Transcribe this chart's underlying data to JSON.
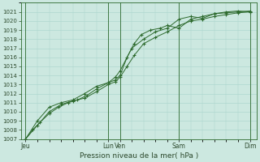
{
  "title": "",
  "xlabel": "Pression niveau de la mer( hPa )",
  "ylabel": "",
  "bg_color": "#cce8e0",
  "grid_color": "#a8d4cc",
  "line_color": "#2d6a2d",
  "marker_color": "#2d6a2d",
  "ylim": [
    1007,
    1022
  ],
  "yticks": [
    1007,
    1008,
    1009,
    1010,
    1011,
    1012,
    1013,
    1014,
    1015,
    1016,
    1017,
    1018,
    1019,
    1020,
    1021
  ],
  "x_day_labels": [
    "Jeu",
    "Lun",
    "Ven",
    "Sam",
    "Dim"
  ],
  "x_day_positions": [
    0.0,
    3.5,
    4.0,
    6.5,
    9.5
  ],
  "xlim": [
    -0.2,
    9.8
  ],
  "vline_positions": [
    0.0,
    3.5,
    4.0,
    6.5,
    9.5
  ],
  "series1_x": [
    0.0,
    0.3,
    0.6,
    1.0,
    1.4,
    1.8,
    2.2,
    2.6,
    3.0,
    3.5,
    3.8,
    4.0,
    4.3,
    4.6,
    4.9,
    5.3,
    5.7,
    6.0,
    6.5,
    7.0,
    7.5,
    8.0,
    8.5,
    9.0,
    9.5
  ],
  "series1_y": [
    1007.0,
    1008.0,
    1008.8,
    1009.8,
    1010.5,
    1011.0,
    1011.3,
    1011.8,
    1012.5,
    1013.2,
    1013.5,
    1014.0,
    1016.0,
    1017.5,
    1018.5,
    1019.0,
    1019.2,
    1019.5,
    1019.2,
    1020.2,
    1020.5,
    1020.8,
    1021.0,
    1021.1,
    1021.0
  ],
  "series2_x": [
    0.0,
    0.5,
    1.0,
    1.5,
    2.0,
    2.5,
    3.0,
    3.5,
    3.8,
    4.0,
    4.3,
    4.6,
    5.0,
    5.5,
    6.0,
    6.5,
    7.0,
    7.5,
    8.0,
    8.5,
    9.0,
    9.5
  ],
  "series2_y": [
    1007.0,
    1008.5,
    1010.0,
    1010.8,
    1011.2,
    1011.5,
    1012.2,
    1013.0,
    1013.3,
    1013.8,
    1015.0,
    1016.2,
    1017.5,
    1018.2,
    1018.8,
    1019.5,
    1020.0,
    1020.2,
    1020.5,
    1020.7,
    1020.9,
    1021.0
  ],
  "series3_x": [
    0.0,
    0.5,
    1.0,
    1.5,
    2.0,
    2.5,
    3.0,
    3.5,
    3.8,
    4.0,
    4.5,
    5.0,
    5.5,
    6.0,
    6.5,
    7.0,
    7.5,
    8.0,
    8.5,
    9.0,
    9.5
  ],
  "series3_y": [
    1007.0,
    1009.0,
    1010.5,
    1011.0,
    1011.3,
    1012.0,
    1012.8,
    1013.2,
    1013.8,
    1014.5,
    1017.0,
    1018.0,
    1018.8,
    1019.2,
    1020.2,
    1020.5,
    1020.3,
    1020.8,
    1020.9,
    1021.0,
    1021.1
  ]
}
